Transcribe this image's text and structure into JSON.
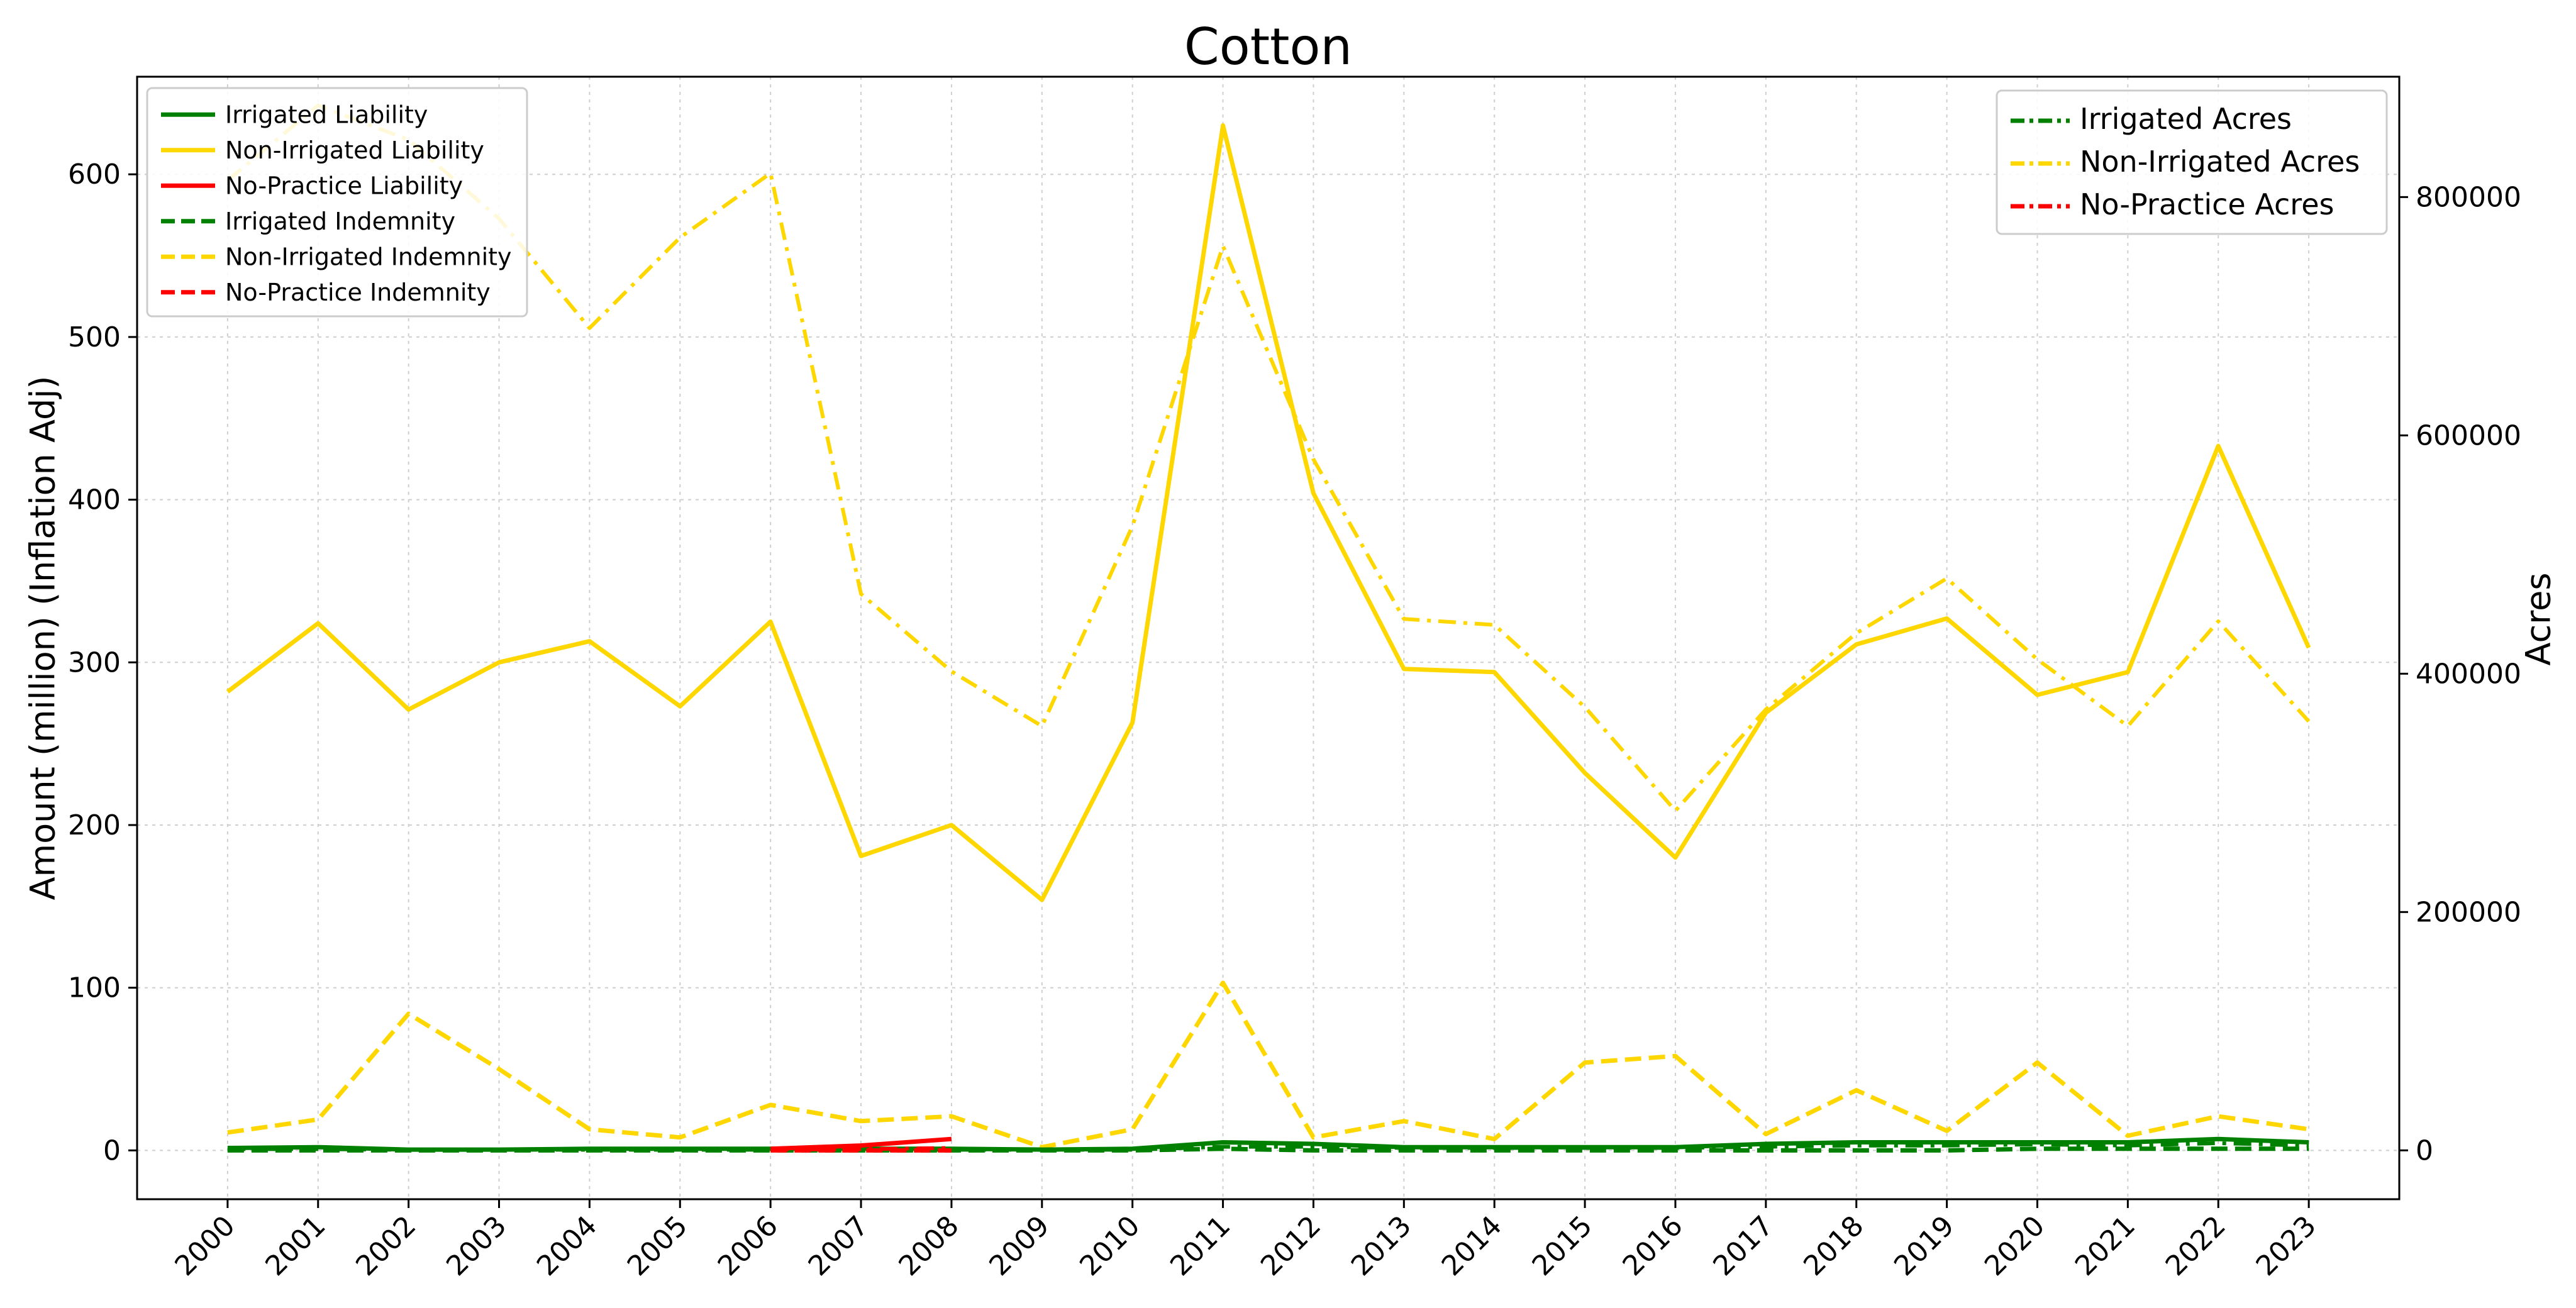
{
  "chart_data": {
    "type": "line",
    "title": "Cotton",
    "ylabel": "Amount (million) (Inflation Adj)",
    "y2label": "Acres",
    "xlabel": "",
    "x": [
      "2000",
      "2001",
      "2002",
      "2003",
      "2004",
      "2005",
      "2006",
      "2007",
      "2008",
      "2009",
      "2010",
      "2011",
      "2012",
      "2013",
      "2014",
      "2015",
      "2016",
      "2017",
      "2018",
      "2019",
      "2020",
      "2021",
      "2022",
      "2023"
    ],
    "ylim": [
      -30,
      660
    ],
    "y2lim": [
      -41000,
      901000
    ],
    "yticks": [
      0,
      100,
      200,
      300,
      400,
      500,
      600
    ],
    "y2ticks": [
      0,
      200000,
      400000,
      600000,
      800000
    ],
    "grid": true,
    "legend_left_placement": "upper-left",
    "legend_right_placement": "upper-right",
    "colors": {
      "irrigated": "#008000",
      "non_irrigated": "#FFD700",
      "no_practice": "#FF0000"
    },
    "series": [
      {
        "name": "Irrigated Liability",
        "axis": "left",
        "style": "solid",
        "color": "#008000",
        "values": [
          1.5,
          2,
          0.5,
          0.5,
          1,
          1,
          1,
          1,
          1,
          0.5,
          1,
          5,
          4,
          2,
          2,
          2,
          2,
          4,
          5,
          5,
          5,
          5,
          7,
          5
        ]
      },
      {
        "name": "Non-Irrigated Liability",
        "axis": "left",
        "style": "solid",
        "color": "#FFD700",
        "values": [
          282,
          324,
          271,
          300,
          313,
          273,
          325,
          181,
          200,
          154,
          263,
          630,
          404,
          296,
          294,
          232,
          180,
          269,
          311,
          327,
          280,
          294,
          433,
          309
        ]
      },
      {
        "name": "No-Practice Liability",
        "axis": "left",
        "style": "solid",
        "color": "#FF0000",
        "values": [
          null,
          null,
          null,
          null,
          null,
          null,
          1,
          3,
          7,
          null,
          null,
          null,
          null,
          null,
          null,
          null,
          null,
          null,
          null,
          null,
          null,
          null,
          null,
          null
        ]
      },
      {
        "name": "Irrigated Indemnity",
        "axis": "left",
        "style": "dashed",
        "color": "#008000",
        "values": [
          0,
          0,
          0,
          0,
          0,
          0,
          0,
          0,
          0,
          0,
          0,
          1,
          0,
          0,
          0,
          0,
          0,
          0,
          0,
          0,
          1,
          1,
          1,
          1
        ]
      },
      {
        "name": "Non-Irrigated Indemnity",
        "axis": "left",
        "style": "dashed",
        "color": "#FFD700",
        "values": [
          11,
          19,
          84,
          50,
          13,
          8,
          28,
          18,
          21,
          2,
          13,
          103,
          8,
          18,
          7,
          54,
          58,
          10,
          37,
          12,
          54,
          9,
          21,
          13
        ]
      },
      {
        "name": "No-Practice Indemnity",
        "axis": "left",
        "style": "dashed",
        "color": "#FF0000",
        "values": [
          null,
          null,
          null,
          null,
          null,
          null,
          0,
          0,
          0,
          null,
          null,
          null,
          null,
          null,
          null,
          null,
          null,
          null,
          null,
          null,
          null,
          null,
          null,
          null
        ]
      },
      {
        "name": "Irrigated Acres",
        "axis": "right",
        "style": "dashdot",
        "color": "#008000",
        "values": [
          1000,
          1000,
          500,
          500,
          500,
          500,
          500,
          500,
          500,
          500,
          500,
          3000,
          3000,
          2000,
          2000,
          2000,
          2000,
          3000,
          4000,
          4000,
          5000,
          4000,
          6000,
          4000
        ]
      },
      {
        "name": "Non-Irrigated Acres",
        "axis": "right",
        "style": "dashdot",
        "color": "#FFD700",
        "values": [
          814000,
          877000,
          848000,
          782000,
          690000,
          766000,
          820000,
          467000,
          402000,
          356000,
          524000,
          759000,
          580000,
          446000,
          441000,
          372000,
          285000,
          370000,
          434000,
          480000,
          412000,
          356000,
          444000,
          360000
        ]
      },
      {
        "name": "No-Practice Acres",
        "axis": "right",
        "style": "dashdot",
        "color": "#FF0000",
        "values": [
          null,
          null,
          null,
          null,
          null,
          null,
          500,
          1000,
          2000,
          null,
          null,
          null,
          null,
          null,
          null,
          null,
          null,
          null,
          null,
          null,
          null,
          null,
          null,
          null
        ]
      }
    ],
    "legend_left": [
      "Irrigated Liability",
      "Non-Irrigated Liability",
      "No-Practice Liability",
      "Irrigated Indemnity",
      "Non-Irrigated Indemnity",
      "No-Practice Indemnity"
    ],
    "legend_right": [
      "Irrigated Acres",
      "Non-Irrigated Acres",
      "No-Practice Acres"
    ]
  }
}
